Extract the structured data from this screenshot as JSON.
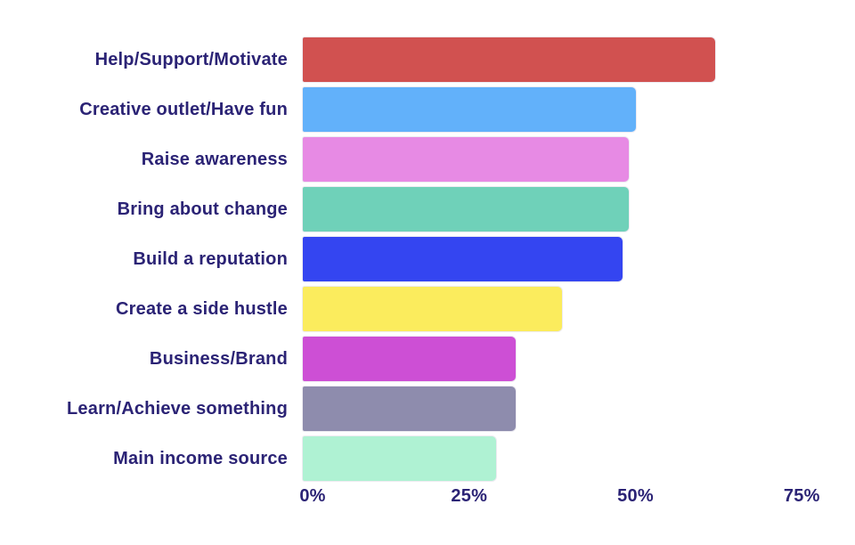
{
  "chart_data": {
    "type": "bar",
    "orientation": "horizontal",
    "title": "",
    "xlabel": "",
    "ylabel": "",
    "categories": [
      "Help/Support/Motivate",
      "Creative outlet/Have fun",
      "Raise awareness",
      "Bring about change",
      "Build a reputation",
      "Create a side hustle",
      "Business/Brand",
      "Learn/Achieve something",
      "Main income source"
    ],
    "values": [
      62,
      50,
      49,
      49,
      48,
      39,
      32,
      32,
      29
    ],
    "value_unit": "%",
    "bar_colors": [
      "#d15150",
      "#62b1fa",
      "#e78ae4",
      "#6fd1b9",
      "#3445f1",
      "#fbec5d",
      "#cd4fd5",
      "#8e8cad",
      "#aff2d3"
    ],
    "x_ticks": [
      "0%",
      "25%",
      "50%",
      "75%"
    ],
    "x_tick_values": [
      0,
      25,
      50,
      75
    ],
    "xlim": [
      0,
      83
    ],
    "grid": false,
    "legend": false,
    "label_color": "#2b2375",
    "background": "#ffffff"
  }
}
